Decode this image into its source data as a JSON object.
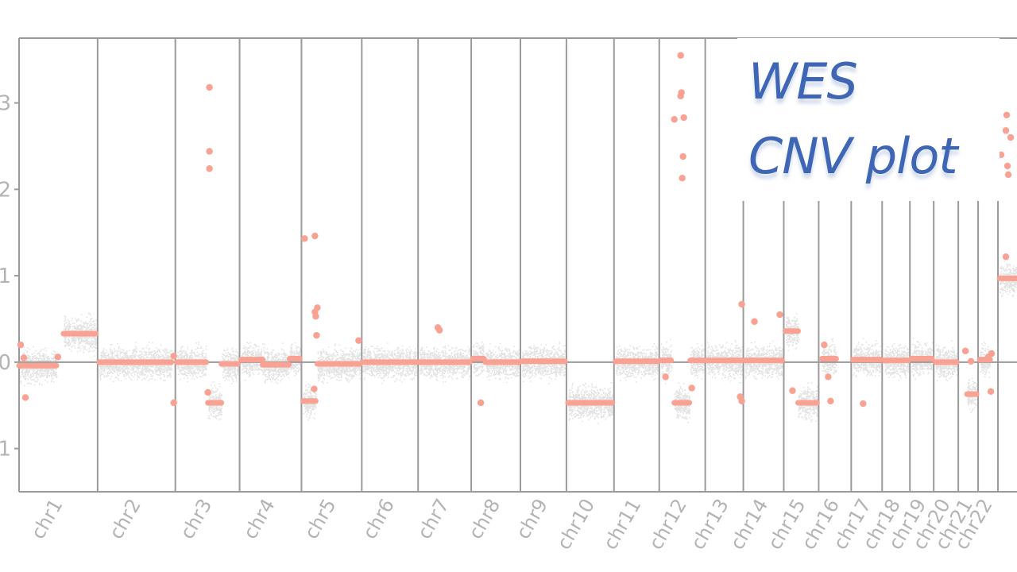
{
  "chart_data": {
    "type": "scatter",
    "title_lines": [
      "WES",
      "CNV plot"
    ],
    "xlabel": "",
    "ylabel": "",
    "ylim": [
      -1.5,
      3.75
    ],
    "yticks": [
      {
        "value": 3,
        "label": "3"
      },
      {
        "value": 2,
        "label": "2"
      },
      {
        "value": 1,
        "label": "1"
      },
      {
        "value": 0,
        "label": "0"
      },
      {
        "value": -1,
        "label": "1"
      }
    ],
    "grid": false,
    "colors": {
      "segments": "#f9a192",
      "raw_points": "#c8c8c8",
      "frame": "#9a9a9a",
      "tick_text": "#b4b4b4",
      "title": "#3f66b4"
    },
    "chromosomes": [
      {
        "name": "chr1",
        "start": 0,
        "end": 99
      },
      {
        "name": "chr2",
        "start": 99,
        "end": 197
      },
      {
        "name": "chr3",
        "start": 197,
        "end": 278
      },
      {
        "name": "chr4",
        "start": 278,
        "end": 356
      },
      {
        "name": "chr5",
        "start": 356,
        "end": 432
      },
      {
        "name": "chr6",
        "start": 432,
        "end": 503
      },
      {
        "name": "chr7",
        "start": 503,
        "end": 570
      },
      {
        "name": "chr8",
        "start": 570,
        "end": 632
      },
      {
        "name": "chr9",
        "start": 632,
        "end": 690
      },
      {
        "name": "chr10",
        "start": 690,
        "end": 750
      },
      {
        "name": "chr11",
        "start": 750,
        "end": 807
      },
      {
        "name": "chr12",
        "start": 807,
        "end": 865
      },
      {
        "name": "chr13",
        "start": 865,
        "end": 913
      },
      {
        "name": "chr14",
        "start": 913,
        "end": 964
      },
      {
        "name": "chr15",
        "start": 964,
        "end": 1008
      },
      {
        "name": "chr16",
        "start": 1008,
        "end": 1049
      },
      {
        "name": "chr17",
        "start": 1049,
        "end": 1088
      },
      {
        "name": "chr18",
        "start": 1088,
        "end": 1123
      },
      {
        "name": "chr19",
        "start": 1123,
        "end": 1153
      },
      {
        "name": "chr20",
        "start": 1153,
        "end": 1184
      },
      {
        "name": "chr21",
        "start": 1184,
        "end": 1209
      },
      {
        "name": "chr22",
        "start": 1209,
        "end": 1234
      },
      {
        "name": "",
        "start": 1234,
        "end": 1258
      }
    ],
    "segments": [
      {
        "x0": 0,
        "x1": 47,
        "y": -0.04
      },
      {
        "x0": 56,
        "x1": 97,
        "y": 0.33
      },
      {
        "x0": 101,
        "x1": 192,
        "y": 0.0
      },
      {
        "x0": 199,
        "x1": 236,
        "y": 0.0
      },
      {
        "x0": 238,
        "x1": 255,
        "y": -0.47
      },
      {
        "x0": 255,
        "x1": 276,
        "y": -0.02
      },
      {
        "x0": 280,
        "x1": 307,
        "y": 0.03
      },
      {
        "x0": 307,
        "x1": 340,
        "y": -0.03
      },
      {
        "x0": 341,
        "x1": 354,
        "y": 0.04
      },
      {
        "x0": 358,
        "x1": 374,
        "y": -0.45
      },
      {
        "x0": 376,
        "x1": 430,
        "y": -0.02
      },
      {
        "x0": 433,
        "x1": 501,
        "y": 0.0
      },
      {
        "x0": 505,
        "x1": 568,
        "y": 0.0
      },
      {
        "x0": 572,
        "x1": 586,
        "y": 0.04
      },
      {
        "x0": 588,
        "x1": 630,
        "y": 0.0
      },
      {
        "x0": 634,
        "x1": 688,
        "y": 0.01
      },
      {
        "x0": 692,
        "x1": 748,
        "y": -0.47
      },
      {
        "x0": 752,
        "x1": 805,
        "y": 0.01
      },
      {
        "x0": 809,
        "x1": 822,
        "y": 0.02
      },
      {
        "x0": 826,
        "x1": 845,
        "y": -0.47
      },
      {
        "x0": 846,
        "x1": 863,
        "y": 0.02
      },
      {
        "x0": 867,
        "x1": 911,
        "y": 0.02
      },
      {
        "x0": 915,
        "x1": 962,
        "y": 0.02
      },
      {
        "x0": 966,
        "x1": 982,
        "y": 0.36
      },
      {
        "x0": 982,
        "x1": 1006,
        "y": -0.47
      },
      {
        "x0": 1012,
        "x1": 1030,
        "y": 0.04
      },
      {
        "x0": 1051,
        "x1": 1086,
        "y": 0.03
      },
      {
        "x0": 1090,
        "x1": 1121,
        "y": 0.02
      },
      {
        "x0": 1125,
        "x1": 1151,
        "y": 0.04
      },
      {
        "x0": 1155,
        "x1": 1182,
        "y": 0.0
      },
      {
        "x0": 1195,
        "x1": 1207,
        "y": -0.37
      },
      {
        "x0": 1211,
        "x1": 1224,
        "y": 0.03
      },
      {
        "x0": 1236,
        "x1": 1258,
        "y": 0.97
      }
    ],
    "outliers": [
      {
        "x": 2,
        "y": 0.2
      },
      {
        "x": 8,
        "y": -0.41
      },
      {
        "x": 6,
        "y": 0.05
      },
      {
        "x": 49,
        "y": 0.06
      },
      {
        "x": 195,
        "y": 0.07
      },
      {
        "x": 195,
        "y": -0.47
      },
      {
        "x": 238,
        "y": -0.35
      },
      {
        "x": 240,
        "y": 3.18
      },
      {
        "x": 240,
        "y": 2.44
      },
      {
        "x": 240,
        "y": 2.24
      },
      {
        "x": 360,
        "y": 1.43
      },
      {
        "x": 373,
        "y": 1.46
      },
      {
        "x": 373,
        "y": 0.58
      },
      {
        "x": 374,
        "y": 0.53
      },
      {
        "x": 376,
        "y": 0.63
      },
      {
        "x": 375,
        "y": 0.31
      },
      {
        "x": 372,
        "y": -0.31
      },
      {
        "x": 428,
        "y": 0.25
      },
      {
        "x": 528,
        "y": 0.4
      },
      {
        "x": 530,
        "y": 0.37
      },
      {
        "x": 582,
        "y": -0.47
      },
      {
        "x": 815,
        "y": -0.17
      },
      {
        "x": 834,
        "y": 3.55
      },
      {
        "x": 834,
        "y": 3.08
      },
      {
        "x": 835,
        "y": 3.12
      },
      {
        "x": 826,
        "y": 2.81
      },
      {
        "x": 838,
        "y": 2.83
      },
      {
        "x": 837,
        "y": 2.38
      },
      {
        "x": 836,
        "y": 2.13
      },
      {
        "x": 848,
        "y": -0.3
      },
      {
        "x": 911,
        "y": 0.67
      },
      {
        "x": 909,
        "y": -0.4
      },
      {
        "x": 911,
        "y": -0.45
      },
      {
        "x": 927,
        "y": 0.47
      },
      {
        "x": 959,
        "y": 0.55
      },
      {
        "x": 975,
        "y": -0.33
      },
      {
        "x": 1015,
        "y": 0.2
      },
      {
        "x": 1020,
        "y": -0.17
      },
      {
        "x": 1023,
        "y": -0.45
      },
      {
        "x": 1064,
        "y": -0.48
      },
      {
        "x": 1193,
        "y": 0.13
      },
      {
        "x": 1200,
        "y": 0.01
      },
      {
        "x": 1225,
        "y": -0.34
      },
      {
        "x": 1238,
        "y": 2.4
      },
      {
        "x": 1245,
        "y": 2.86
      },
      {
        "x": 1244,
        "y": 2.68
      },
      {
        "x": 1250,
        "y": 2.6
      },
      {
        "x": 1246,
        "y": 2.27
      },
      {
        "x": 1247,
        "y": 2.17
      },
      {
        "x": 1244,
        "y": 1.22
      },
      {
        "x": 1226,
        "y": 0.1
      },
      {
        "x": 1222,
        "y": 0.06
      }
    ]
  }
}
